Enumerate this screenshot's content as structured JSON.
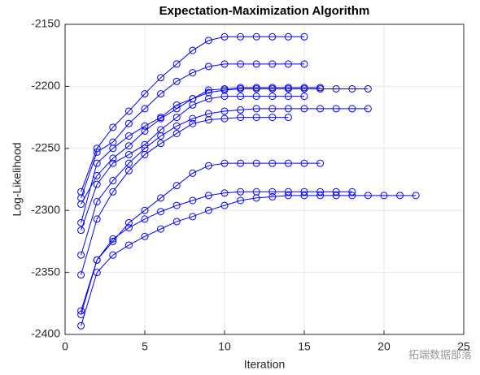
{
  "chart_data": {
    "type": "line",
    "title": "Expectation-Maximization Algorithm",
    "x_label": "Iteration",
    "y_label": "Log-Likelihood",
    "x": [
      1,
      2,
      3,
      4,
      5,
      6,
      7,
      8,
      9,
      10,
      11,
      12,
      13,
      14,
      15,
      16,
      17,
      18,
      19,
      20,
      21,
      22
    ],
    "color": "#0000ff",
    "series": [
      {
        "values": [
          -2285,
          -2250,
          -2233,
          -2220,
          -2206,
          -2193,
          -2182,
          -2171,
          -2163,
          -2160,
          -2160,
          -2160,
          -2160,
          -2160,
          -2160,
          null,
          null,
          null,
          null,
          null,
          null,
          null
        ]
      },
      {
        "values": [
          -2290,
          -2253,
          -2245,
          -2230,
          -2218,
          -2206,
          -2196,
          -2189,
          -2184,
          -2182,
          -2182,
          -2182,
          -2182,
          -2182,
          -2182,
          null,
          null,
          null,
          null,
          null,
          null,
          null
        ]
      },
      {
        "values": [
          -2310,
          -2262,
          -2250,
          -2240,
          -2232,
          -2225,
          -2215,
          -2210,
          -2205,
          -2203,
          -2202,
          -2202,
          -2202,
          -2202,
          -2202,
          -2202,
          -2202,
          -2202,
          -2202,
          null,
          null,
          null
        ]
      },
      {
        "values": [
          -2295,
          -2272,
          -2258,
          -2248,
          -2236,
          -2226,
          -2218,
          -2210,
          -2203,
          -2202,
          -2201,
          -2201,
          -2201,
          -2201,
          -2201,
          -2201,
          null,
          null,
          null,
          null,
          null,
          null
        ]
      },
      {
        "values": [
          -2316,
          -2279,
          -2262,
          -2255,
          -2247,
          -2235,
          -2225,
          -2215,
          -2210,
          -2208,
          -2208,
          -2208,
          -2208,
          -2208,
          -2208,
          null,
          null,
          null,
          null,
          null,
          null,
          null
        ]
      },
      {
        "values": [
          -2336,
          -2293,
          -2276,
          -2262,
          -2250,
          -2240,
          -2232,
          -2226,
          -2222,
          -2220,
          -2219,
          -2218,
          -2218,
          -2218,
          -2218,
          -2218,
          -2218,
          -2218,
          -2218,
          null,
          null,
          null
        ]
      },
      {
        "values": [
          -2352,
          -2307,
          -2285,
          -2268,
          -2255,
          -2246,
          -2238,
          -2230,
          -2227,
          -2226,
          -2225,
          -2225,
          -2225,
          -2225,
          null,
          null,
          null,
          null,
          null,
          null,
          null,
          null
        ]
      },
      {
        "values": [
          -2381,
          -2340,
          -2325,
          -2310,
          -2300,
          -2290,
          -2280,
          -2270,
          -2264,
          -2262,
          -2262,
          -2262,
          -2262,
          -2262,
          -2262,
          -2262,
          null,
          null,
          null,
          null,
          null,
          null
        ]
      },
      {
        "values": [
          -2384,
          -2340,
          -2323,
          -2314,
          -2307,
          -2301,
          -2296,
          -2292,
          -2288,
          -2286,
          -2285,
          -2285,
          -2285,
          -2285,
          -2285,
          -2285,
          -2285,
          -2285,
          null,
          null,
          null,
          null
        ]
      },
      {
        "values": [
          -2393,
          -2350,
          -2336,
          -2328,
          -2321,
          -2315,
          -2309,
          -2305,
          -2300,
          -2296,
          -2292,
          -2290,
          -2289,
          -2288,
          -2288,
          -2288,
          -2288,
          -2288,
          -2288,
          -2288,
          -2288,
          -2288
        ]
      }
    ],
    "xlim": [
      0,
      25
    ],
    "xticks": [
      0,
      5,
      10,
      15,
      20,
      25
    ],
    "ylim": [
      -2400,
      -2150
    ],
    "yticks": [
      -2400,
      -2350,
      -2300,
      -2250,
      -2200,
      -2150
    ],
    "grid": true,
    "watermark": "拓端数据部落"
  }
}
